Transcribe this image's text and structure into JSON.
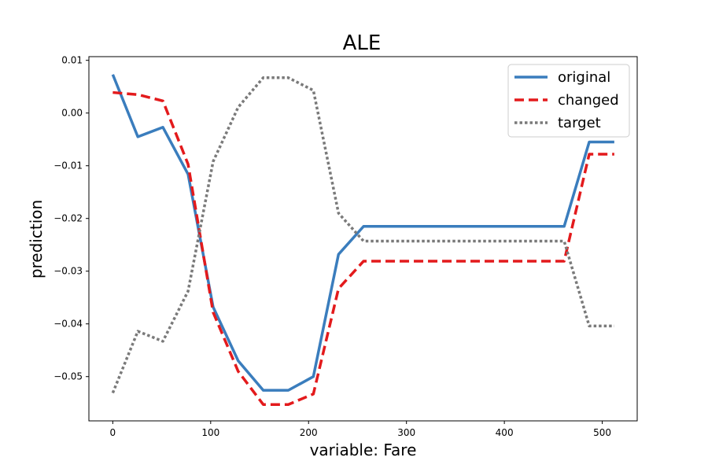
{
  "chart_data": {
    "type": "line",
    "title": "ALE",
    "xlabel": "variable: Fare",
    "ylabel": "prediction",
    "xlim": [
      -24.4,
      535.7
    ],
    "ylim": [
      -0.0584,
      0.0107
    ],
    "xticks": [
      0,
      100,
      200,
      300,
      400,
      500
    ],
    "xtick_labels": [
      "0",
      "100",
      "200",
      "300",
      "400",
      "500"
    ],
    "yticks": [
      0.01,
      0.0,
      -0.01,
      -0.02,
      -0.03,
      -0.04,
      -0.05
    ],
    "ytick_labels": [
      "0.01",
      "0.00",
      "−0.01",
      "−0.02",
      "−0.03",
      "−0.04",
      "−0.05"
    ],
    "grid": false,
    "legend_position": "top-right",
    "series": [
      {
        "name": "original",
        "color": "#3a7dbd",
        "style": "solid",
        "x": [
          0,
          25.6,
          51.2,
          76.9,
          102.5,
          128.1,
          153.7,
          179.3,
          204.9,
          230.6,
          256.2,
          281.8,
          307.4,
          333.0,
          358.6,
          384.2,
          409.9,
          435.5,
          461.1,
          486.7,
          512.3
        ],
        "y": [
          0.0073,
          -0.0045,
          -0.0027,
          -0.0116,
          -0.0368,
          -0.047,
          -0.0526,
          -0.0526,
          -0.05,
          -0.0268,
          -0.0215,
          -0.0215,
          -0.0215,
          -0.0215,
          -0.0215,
          -0.0215,
          -0.0215,
          -0.0215,
          -0.0215,
          -0.0055,
          -0.0055
        ]
      },
      {
        "name": "changed",
        "color": "#e31a1c",
        "style": "dashed",
        "x": [
          0,
          25.6,
          51.2,
          76.9,
          102.5,
          128.1,
          153.7,
          179.3,
          204.9,
          230.6,
          256.2,
          281.8,
          307.4,
          333.0,
          358.6,
          384.2,
          409.9,
          435.5,
          461.1,
          486.7,
          512.3
        ],
        "y": [
          0.0039,
          0.0035,
          0.0023,
          -0.0097,
          -0.0378,
          -0.049,
          -0.0553,
          -0.0553,
          -0.0533,
          -0.0333,
          -0.0281,
          -0.0281,
          -0.0281,
          -0.0281,
          -0.0281,
          -0.0281,
          -0.0281,
          -0.0281,
          -0.0281,
          -0.0078,
          -0.0078
        ]
      },
      {
        "name": "target",
        "color": "#7a7a7a",
        "style": "dotted",
        "x": [
          0,
          25.6,
          51.2,
          76.9,
          102.5,
          128.1,
          153.7,
          179.3,
          204.9,
          230.6,
          256.2,
          281.8,
          307.4,
          333.0,
          358.6,
          384.2,
          409.9,
          435.5,
          461.1,
          486.7,
          512.3
        ],
        "y": [
          -0.0531,
          -0.0414,
          -0.0433,
          -0.0338,
          -0.0092,
          0.0011,
          0.0067,
          0.0067,
          0.0043,
          -0.019,
          -0.0243,
          -0.0243,
          -0.0243,
          -0.0243,
          -0.0243,
          -0.0243,
          -0.0243,
          -0.0243,
          -0.0243,
          -0.0404,
          -0.0404
        ]
      }
    ]
  }
}
